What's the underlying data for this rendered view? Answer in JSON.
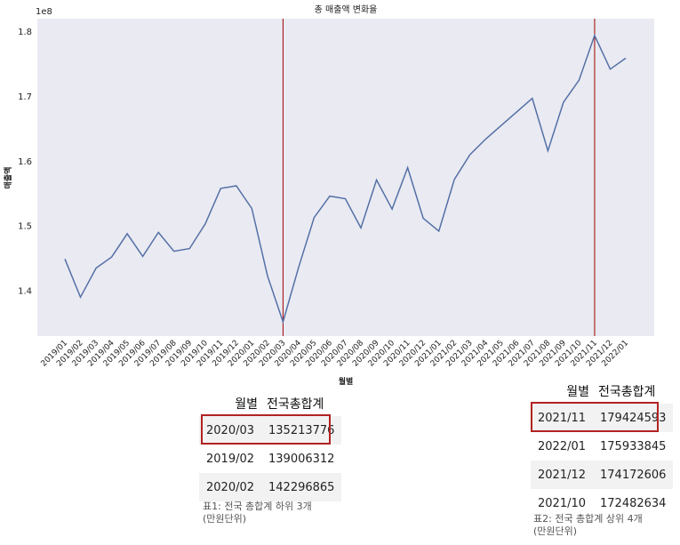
{
  "chart_data": {
    "type": "line",
    "title": "총 매출액 변화율",
    "xlabel": "월별",
    "ylabel": "매출액",
    "y_offset_label": "1e8",
    "ylim": [
      1.33,
      1.82
    ],
    "yticks": [
      "1.4",
      "1.5",
      "1.6",
      "1.7",
      "1.8"
    ],
    "ytick_values": [
      1.4,
      1.5,
      1.6,
      1.7,
      1.8
    ],
    "grid": false,
    "line_color": "#5470a6",
    "vline_color": "#a00000",
    "vlines": [
      "2020/03",
      "2021/11"
    ],
    "categories": [
      "2019/01",
      "2019/02",
      "2019/03",
      "2019/04",
      "2019/05",
      "2019/06",
      "2019/07",
      "2019/08",
      "2019/09",
      "2019/10",
      "2019/11",
      "2019/12",
      "2020/01",
      "2020/02",
      "2020/03",
      "2020/04",
      "2020/05",
      "2020/06",
      "2020/07",
      "2020/08",
      "2020/09",
      "2020/10",
      "2020/11",
      "2020/12",
      "2021/01",
      "2021/02",
      "2021/03",
      "2021/04",
      "2021/05",
      "2021/06",
      "2021/07",
      "2021/08",
      "2021/09",
      "2021/10",
      "2021/11",
      "2021/12",
      "2022/01"
    ],
    "values": [
      1.449,
      1.39,
      1.435,
      1.452,
      1.488,
      1.453,
      1.49,
      1.461,
      1.465,
      1.503,
      1.558,
      1.562,
      1.527,
      1.423,
      1.352,
      1.436,
      1.513,
      1.546,
      1.542,
      1.497,
      1.571,
      1.526,
      1.59,
      1.512,
      1.492,
      1.572,
      1.61,
      1.634,
      1.655,
      1.676,
      1.697,
      1.616,
      1.691,
      1.725,
      1.794,
      1.742,
      1.759
    ]
  },
  "table_bottom3": {
    "headers": [
      "월별",
      "전국총합계"
    ],
    "rows": [
      [
        "2020/03",
        "135213776"
      ],
      [
        "2019/02",
        "139006312"
      ],
      [
        "2020/02",
        "142296865"
      ]
    ],
    "caption": "표1: 전국 총합계 하위 3개\n(만원단위)"
  },
  "table_top4": {
    "headers": [
      "월별",
      "전국총합계"
    ],
    "rows": [
      [
        "2021/11",
        "179424593"
      ],
      [
        "2022/01",
        "175933845"
      ],
      [
        "2021/12",
        "174172606"
      ],
      [
        "2021/10",
        "172482634"
      ]
    ],
    "caption": "표2: 전국 총합계 상위 4개\n(만원단위)"
  },
  "highlight_color": "#b22222"
}
